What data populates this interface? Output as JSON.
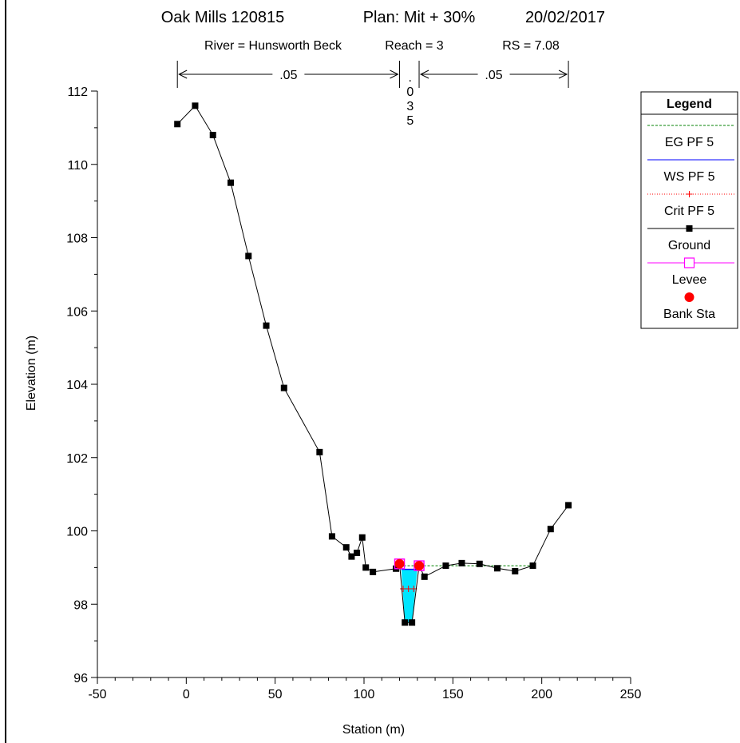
{
  "chart_data": {
    "type": "line",
    "title": {
      "project": "Oak Mills 120815",
      "plan": "Plan: Mit + 30%",
      "date": "20/02/2017"
    },
    "subtitle": {
      "river": "River = Hunsworth Beck",
      "reach": "Reach = 3",
      "rs": "RS = 7.08"
    },
    "xlabel": "Station (m)",
    "ylabel": "Elevation (m)",
    "xlim": [
      -50,
      250
    ],
    "ylim": [
      96,
      112
    ],
    "x_ticks": [
      -50,
      0,
      50,
      100,
      150,
      200,
      250
    ],
    "y_ticks": [
      96,
      98,
      100,
      102,
      104,
      106,
      108,
      110,
      112
    ],
    "manning": [
      {
        "label": ".05",
        "from": -5,
        "to": 120,
        "vertical": false
      },
      {
        "label": ".035",
        "from": 120,
        "to": 131,
        "vertical": true
      },
      {
        "label": ".05",
        "from": 131,
        "to": 215,
        "vertical": false
      }
    ],
    "legend": {
      "title": "Legend",
      "placement": "right",
      "entries": [
        {
          "name": "EG PF 5",
          "color": "#008000",
          "style": "dashed",
          "marker": "none"
        },
        {
          "name": "WS PF 5",
          "color": "#0000ff",
          "style": "solid",
          "marker": "none"
        },
        {
          "name": "Crit PF 5",
          "color": "#ff0000",
          "style": "dotted",
          "marker": "plus"
        },
        {
          "name": "Ground",
          "color": "#000000",
          "style": "solid",
          "marker": "square"
        },
        {
          "name": "Levee",
          "color": "#ff00ff",
          "style": "solid",
          "marker": "open-square"
        },
        {
          "name": "Bank Sta",
          "color": "#ff0000",
          "style": "none",
          "marker": "circle"
        }
      ]
    },
    "series": [
      {
        "name": "Ground",
        "x": [
          -5,
          5,
          15,
          25,
          35,
          45,
          55,
          75,
          82,
          90,
          93,
          96,
          99,
          101,
          105,
          118,
          120,
          123,
          127,
          131,
          134,
          146,
          155,
          165,
          175,
          185,
          195,
          205,
          215
        ],
        "y": [
          111.1,
          111.6,
          110.8,
          109.5,
          107.5,
          105.6,
          103.9,
          102.15,
          99.85,
          99.55,
          99.3,
          99.4,
          99.82,
          99.0,
          98.88,
          98.97,
          99.1,
          97.5,
          97.5,
          99.05,
          98.75,
          99.05,
          99.12,
          99.1,
          98.98,
          98.9,
          99.05,
          100.05,
          100.7
        ]
      },
      {
        "name": "EG PF 5",
        "x": [
          120,
          195
        ],
        "y": [
          99.05,
          99.05
        ]
      },
      {
        "name": "WS PF 5",
        "x": [
          121,
          130
        ],
        "y": [
          98.95,
          98.95
        ]
      },
      {
        "name": "Crit PF 5",
        "x": [
          122,
          125,
          128
        ],
        "y": [
          98.42,
          98.42,
          98.42
        ]
      },
      {
        "name": "Levee",
        "x": [
          120,
          131
        ],
        "y": [
          99.1,
          99.05
        ]
      },
      {
        "name": "Bank Sta",
        "x": [
          120,
          131
        ],
        "y": [
          99.1,
          99.05
        ]
      }
    ],
    "water_polygon": {
      "x": [
        121,
        130,
        127,
        123
      ],
      "y": [
        98.95,
        98.95,
        97.5,
        97.5
      ],
      "color": "#00e5ff"
    }
  }
}
